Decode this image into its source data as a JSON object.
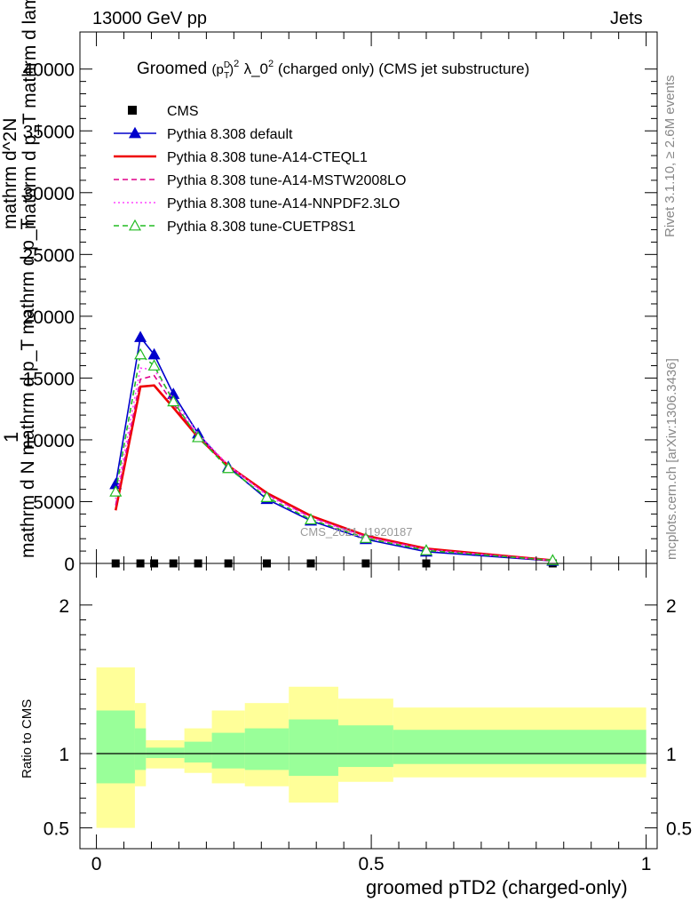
{
  "header": {
    "left": "13000 GeV pp",
    "right": "Jets"
  },
  "side_labels": {
    "rivet": "Rivet 3.1.10, ≥ 2.6M events",
    "mcplots": "mcplots.cern.ch [arXiv:1306.3436]"
  },
  "title": {
    "groomed": "Groomed",
    "p": "(p",
    "d": "D",
    "t": "T",
    "rest1": ")",
    "sup2": "2",
    "lambda": "λ_0",
    "sup2b": "2",
    "rest2": "  (charged only) (CMS jet substructure)"
  },
  "yaxis": {
    "upper_one": "1",
    "upper_den": "mathrm d N mathrm d p_T mathrm d p_T",
    "upper_num": "mathrm d^2N",
    "upper_num2": "mathrm d p_T mathrm d lambda",
    "lower": "Ratio to CMS"
  },
  "xaxis": {
    "label": "groomed pTD2 (charged-only)"
  },
  "watermark": "CMS_2021_I1920187",
  "chart_data": [
    {
      "type": "line",
      "panel": "main",
      "x": [
        0.035,
        0.08,
        0.105,
        0.14,
        0.185,
        0.24,
        0.31,
        0.39,
        0.49,
        0.6,
        0.83
      ],
      "xlim": [
        -0.03,
        1.02
      ],
      "ylim": [
        0,
        43000
      ],
      "yticks": [
        0,
        5000,
        10000,
        15000,
        20000,
        25000,
        30000,
        35000,
        40000
      ],
      "ytick_labels": [
        "0",
        "5000",
        "10000",
        "15000",
        "20000",
        "25000",
        "30000",
        "35000",
        "40000"
      ],
      "xticks": [
        0,
        0.5,
        1
      ],
      "xtick_labels": [
        "0",
        "0.5",
        "1"
      ],
      "series": [
        {
          "name": "CMS",
          "color": "#000000",
          "style": "points",
          "values": [
            0,
            0,
            0,
            0,
            0,
            0,
            0,
            0,
            0,
            0,
            0
          ]
        },
        {
          "name": "Pythia 8.308 default",
          "color": "#0000cc",
          "style": "solid-triangle",
          "values": [
            6400,
            18300,
            16900,
            13700,
            10500,
            7800,
            5200,
            3450,
            1950,
            950,
            200
          ]
        },
        {
          "name": "Pythia 8.308 tune-A14-CTEQL1",
          "color": "#ee0000",
          "style": "solid-thick",
          "values": [
            4300,
            14300,
            14400,
            12600,
            10200,
            7900,
            5700,
            3850,
            2250,
            1200,
            250
          ]
        },
        {
          "name": "Pythia 8.308 tune-A14-MSTW2008LO",
          "color": "#e0008a",
          "style": "dashed",
          "values": [
            4700,
            14900,
            15200,
            12900,
            10300,
            7900,
            5600,
            3750,
            2200,
            1150,
            250
          ]
        },
        {
          "name": "Pythia 8.308 tune-A14-NNPDF2.3LO",
          "color": "#ff44ff",
          "style": "dotted",
          "values": [
            5200,
            15800,
            15700,
            13300,
            10500,
            7950,
            5500,
            3700,
            2100,
            1100,
            230
          ]
        },
        {
          "name": "Pythia 8.308 tune-CUETP8S1",
          "color": "#22bb22",
          "style": "dashed-open-triangle",
          "values": [
            5800,
            16900,
            16000,
            13100,
            10200,
            7700,
            5350,
            3550,
            2050,
            1050,
            250
          ]
        }
      ]
    },
    {
      "type": "area",
      "panel": "ratio",
      "ylabel": "Ratio to CMS",
      "ylim": [
        0.36,
        2.28
      ],
      "yticks": [
        0.5,
        1,
        2
      ],
      "ytick_labels": [
        "0.5",
        "1",
        "2"
      ],
      "bin_edges": [
        0,
        0.07,
        0.09,
        0.16,
        0.21,
        0.27,
        0.35,
        0.44,
        0.54,
        1.0
      ],
      "band_outer_low": [
        0.5,
        0.78,
        0.9,
        0.87,
        0.8,
        0.78,
        0.67,
        0.81,
        0.84
      ],
      "band_outer_high": [
        1.58,
        1.34,
        1.09,
        1.17,
        1.29,
        1.34,
        1.45,
        1.37,
        1.31
      ],
      "band_inner_low": [
        0.8,
        0.89,
        0.97,
        0.94,
        0.9,
        0.89,
        0.85,
        0.91,
        0.93
      ],
      "band_inner_high": [
        1.29,
        1.17,
        1.04,
        1.08,
        1.14,
        1.17,
        1.23,
        1.19,
        1.16
      ],
      "reference": 1,
      "colors": {
        "outer": "#ffff99",
        "inner": "#99ff99",
        "line": "#000000"
      }
    }
  ]
}
